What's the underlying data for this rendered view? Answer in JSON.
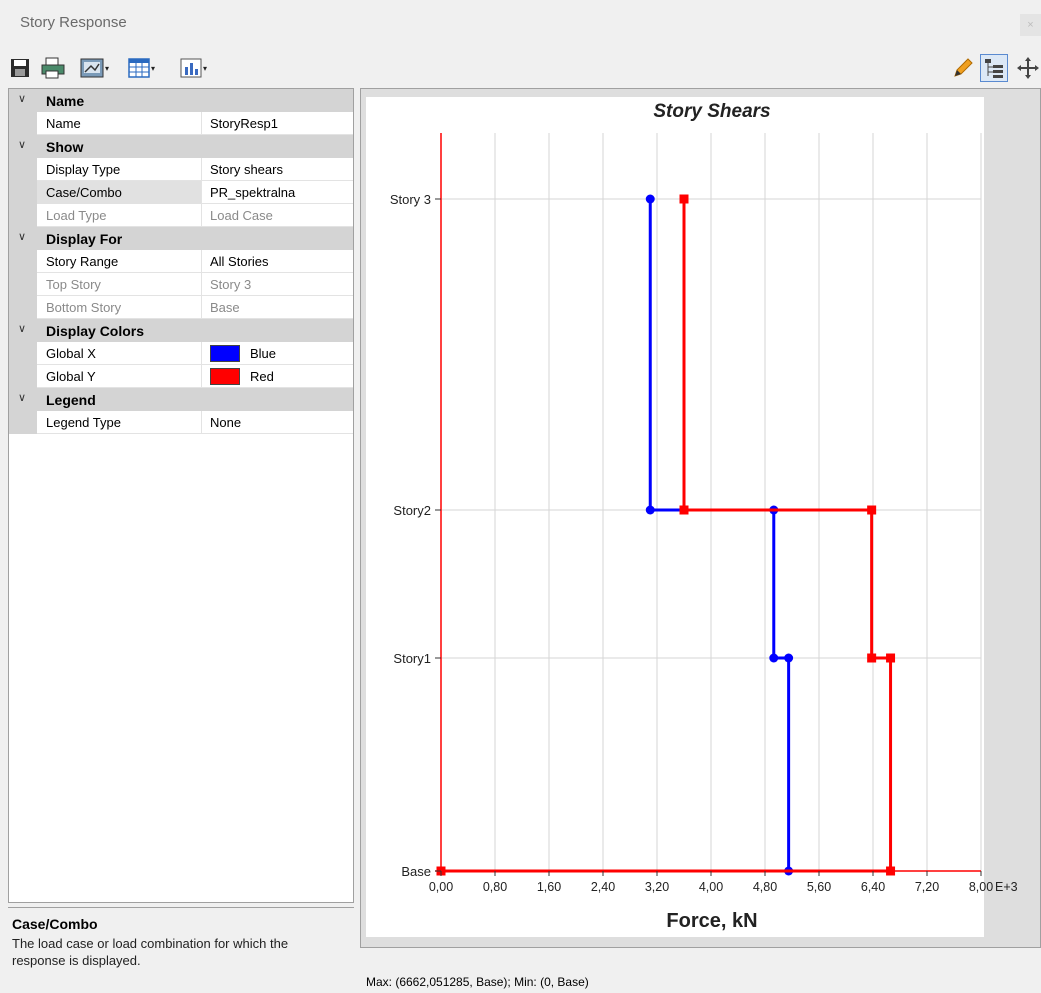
{
  "window": {
    "title": "Story Response",
    "close_glyph": "×"
  },
  "toolbar": {
    "left_icons": [
      "save-icon",
      "print-icon",
      "display-image-icon",
      "table-icon",
      "chart-icon"
    ],
    "right_icons": [
      "pencil-icon",
      "tree-icon",
      "move-icon"
    ]
  },
  "properties": {
    "name_cat": "Name",
    "name_label": "Name",
    "name_value": "StoryResp1",
    "show_cat": "Show",
    "display_type_label": "Display Type",
    "display_type_value": "Story shears",
    "case_label": "Case/Combo",
    "case_value": "PR_spektralna",
    "load_type_label": "Load Type",
    "load_type_value": "Load Case",
    "display_for_cat": "Display For",
    "story_range_label": "Story Range",
    "story_range_value": "All Stories",
    "top_story_label": "Top Story",
    "top_story_value": "Story 3",
    "bottom_story_label": "Bottom Story",
    "bottom_story_value": "Base",
    "display_colors_cat": "Display Colors",
    "global_x_label": "Global X",
    "global_x_value": "Blue",
    "global_x_color": "#0000ff",
    "global_y_label": "Global Y",
    "global_y_value": "Red",
    "global_y_color": "#ff0000",
    "legend_cat": "Legend",
    "legend_type_label": "Legend Type",
    "legend_type_value": "None"
  },
  "help": {
    "title": "Case/Combo",
    "text": "The load case or load combination for which the response is displayed."
  },
  "status": {
    "text": "Max: (6662,051285, Base);   Min: (0, Base)"
  },
  "chart_data": {
    "type": "line",
    "title": "Story Shears",
    "xlabel": "Force, kN",
    "x_unit_suffix": "E+3",
    "xlim": [
      0,
      8
    ],
    "x_ticks": [
      0,
      0.8,
      1.6,
      2.4,
      3.2,
      4.0,
      4.8,
      5.6,
      6.4,
      7.2,
      8.0
    ],
    "x_tick_labels": [
      "0,00",
      "0,80",
      "1,60",
      "2,40",
      "3,20",
      "4,00",
      "4,80",
      "5,60",
      "6,40",
      "7,20",
      "8,00"
    ],
    "stories": [
      "Base",
      "Story1",
      "Story2",
      "Story 3"
    ],
    "story_levels": [
      0,
      1,
      2,
      3
    ],
    "grid": true,
    "series": [
      {
        "name": "Global X",
        "color": "#0000ff",
        "marker": "circle",
        "points": [
          [
            0,
            0
          ],
          [
            5.15,
            0
          ],
          [
            5.15,
            1
          ],
          [
            4.93,
            1
          ],
          [
            4.93,
            2
          ],
          [
            3.1,
            2
          ],
          [
            3.1,
            3
          ]
        ]
      },
      {
        "name": "Global Y",
        "color": "#ff0000",
        "marker": "square",
        "points": [
          [
            0,
            0
          ],
          [
            6.66,
            0
          ],
          [
            6.66,
            1
          ],
          [
            6.38,
            1
          ],
          [
            6.38,
            2
          ],
          [
            3.6,
            2
          ],
          [
            3.6,
            3
          ]
        ]
      }
    ]
  }
}
